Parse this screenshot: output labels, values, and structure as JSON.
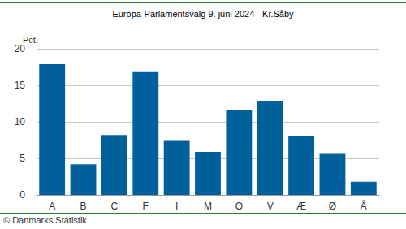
{
  "chart_data": {
    "type": "bar",
    "title": "Europa-Parlamentsvalg 9. juni 2024 - Kr.Såby",
    "ylabel": "Pct.",
    "annotations": [
      "© Danmarks Statistik"
    ],
    "categories": [
      "A",
      "B",
      "C",
      "F",
      "I",
      "M",
      "O",
      "V",
      "Æ",
      "Ø",
      "Å"
    ],
    "values": [
      17.9,
      4.2,
      8.2,
      16.8,
      7.4,
      5.9,
      11.6,
      12.9,
      8.1,
      5.6,
      1.8
    ],
    "color": "#00609c",
    "ylim": [
      0,
      20
    ],
    "yticks": [
      0,
      5,
      10,
      15,
      20
    ],
    "grid": true
  }
}
